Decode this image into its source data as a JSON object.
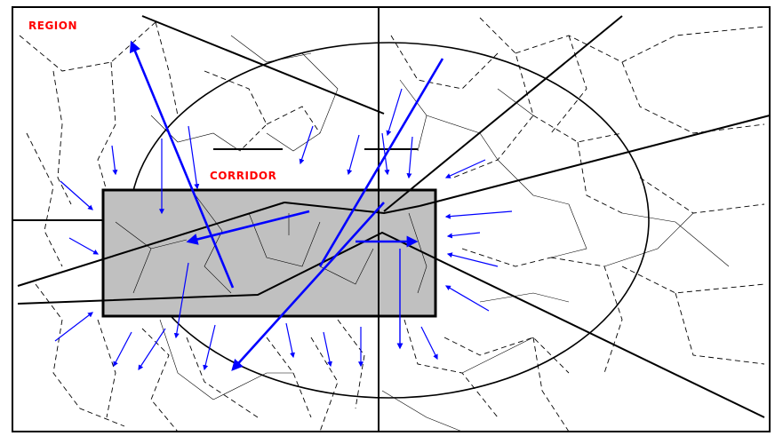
{
  "labels": {
    "region": "REGION",
    "corridor": "CORRIDOR"
  },
  "colors": {
    "label": "#ff0000",
    "arrow": "#0000ff",
    "corridor_fill": "#c0c0c0",
    "line": "#000000"
  }
}
